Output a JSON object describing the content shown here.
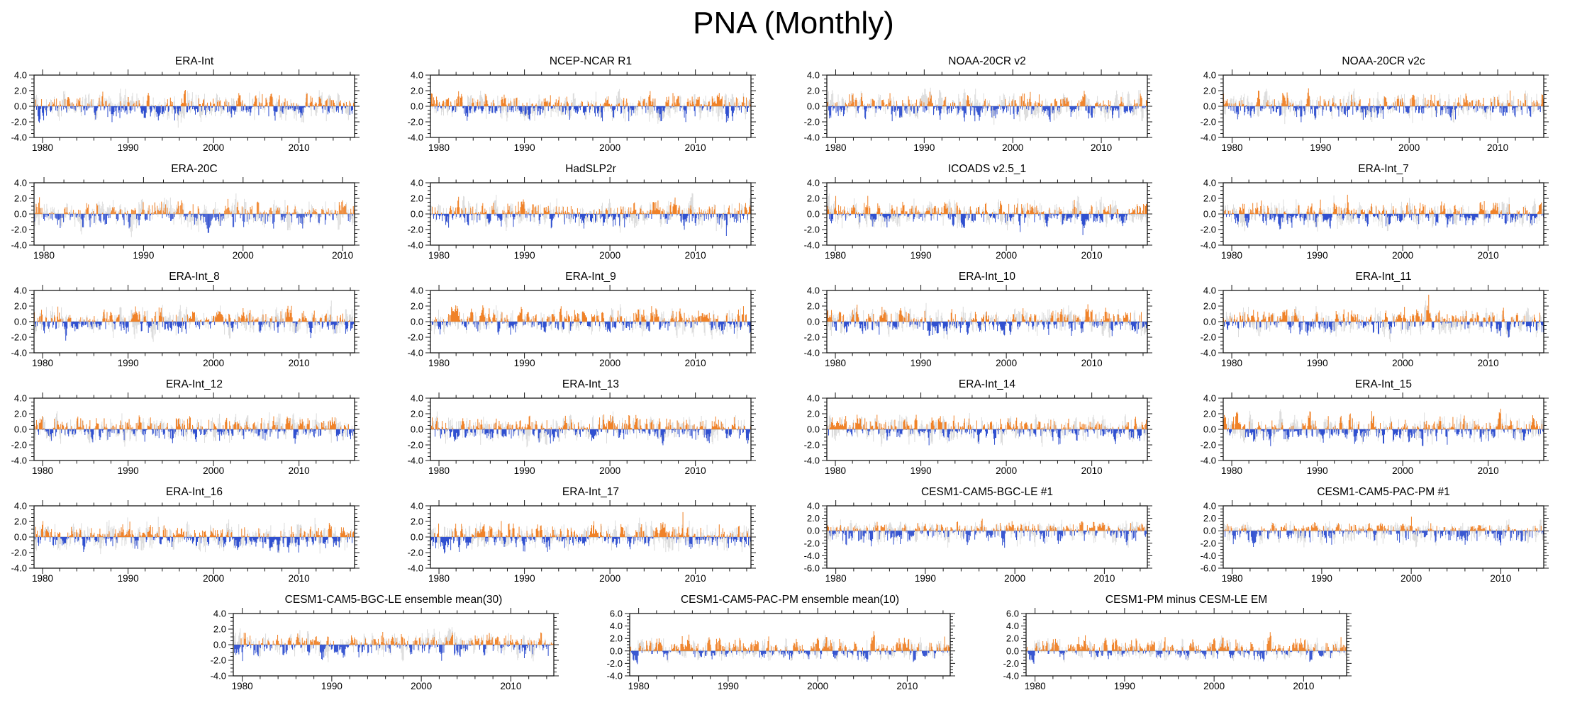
{
  "page_title": "PNA (Monthly)",
  "colors": {
    "positive_bar": "#F08228",
    "negative_bar": "#3050D0",
    "ghost_bar": "#DCDCDC",
    "axis": "#1a1a1a",
    "zero_line": "#9a9a9a",
    "background": "#ffffff"
  },
  "chart_data": {
    "type": "bar",
    "title": "PNA (Monthly)",
    "encoding": "Monthly PNA index anomalies: orange bars = positive values, blue bars = negative values, light-gray ghost bars = background reference series; x axis = years, y axis = index value",
    "x_axis_tick_years": [
      1980,
      1990,
      2000,
      2010
    ],
    "layout_rows": [
      [
        0,
        1,
        2,
        3
      ],
      [
        4,
        5,
        6,
        7
      ],
      [
        8,
        9,
        10,
        11
      ],
      [
        12,
        13,
        14,
        15
      ],
      [
        16,
        17,
        18,
        19
      ],
      [
        20,
        21,
        22
      ]
    ],
    "panels": [
      {
        "title": "ERA-Int",
        "ylim": [
          -4,
          4
        ],
        "ytick_step": 2,
        "ytick_labels": [
          "4.0",
          "2.0",
          "0.0",
          "-2.0",
          "-4.0"
        ],
        "xticks": [
          1980,
          1990,
          2000,
          2010
        ],
        "x_start": 1979,
        "x_end": 2016.5,
        "seed": 101,
        "synth": {
          "pos": 1.0,
          "neg": 1.05,
          "clip": [
            -3.9,
            3.9
          ]
        }
      },
      {
        "title": "NCEP-NCAR R1",
        "ylim": [
          -4,
          4
        ],
        "ytick_step": 2,
        "ytick_labels": [
          "4.0",
          "2.0",
          "0.0",
          "-2.0",
          "-4.0"
        ],
        "xticks": [
          1980,
          1990,
          2000,
          2010
        ],
        "x_start": 1979,
        "x_end": 2016.5,
        "seed": 102,
        "synth": {
          "pos": 1.0,
          "neg": 1.0,
          "clip": [
            -3.9,
            3.9
          ]
        }
      },
      {
        "title": "NOAA-20CR v2",
        "ylim": [
          -4,
          4
        ],
        "ytick_step": 2,
        "ytick_labels": [
          "4.0",
          "2.0",
          "0.0",
          "-2.0",
          "-4.0"
        ],
        "xticks": [
          1980,
          1990,
          2000,
          2010
        ],
        "x_start": 1979,
        "x_end": 2015.2,
        "seed": 103,
        "synth": {
          "pos": 1.05,
          "neg": 1.0,
          "clip": [
            -3.9,
            3.9
          ]
        }
      },
      {
        "title": "NOAA-20CR v2c",
        "ylim": [
          -4,
          4
        ],
        "ytick_step": 2,
        "ytick_labels": [
          "4.0",
          "2.0",
          "0.0",
          "-2.0",
          "-4.0"
        ],
        "xticks": [
          1980,
          1990,
          2000,
          2010
        ],
        "x_start": 1979,
        "x_end": 2015.2,
        "seed": 104,
        "synth": {
          "pos": 1.05,
          "neg": 1.0,
          "clip": [
            -3.9,
            3.9
          ]
        }
      },
      {
        "title": "ERA-20C",
        "ylim": [
          -4,
          4
        ],
        "ytick_step": 2,
        "ytick_labels": [
          "4.0",
          "2.0",
          "0.0",
          "-2.0",
          "-4.0"
        ],
        "xticks": [
          1980,
          1990,
          2000,
          2010
        ],
        "x_start": 1979,
        "x_end": 2011.2,
        "seed": 105,
        "synth": {
          "pos": 1.0,
          "neg": 1.1,
          "clip": [
            -3.9,
            3.9
          ]
        }
      },
      {
        "title": "HadSLP2r",
        "ylim": [
          -4,
          4
        ],
        "ytick_step": 2,
        "ytick_labels": [
          "4.0",
          "2.0",
          "0.0",
          "-2.0",
          "-4.0"
        ],
        "xticks": [
          1980,
          1990,
          2000,
          2010
        ],
        "x_start": 1979,
        "x_end": 2016.5,
        "seed": 106,
        "synth": {
          "pos": 1.0,
          "neg": 1.0,
          "clip": [
            -3.9,
            3.9
          ]
        }
      },
      {
        "title": "ICOADS v2.5_1",
        "ylim": [
          -4,
          4
        ],
        "ytick_step": 2,
        "ytick_labels": [
          "4.0",
          "2.0",
          "0.0",
          "-2.0",
          "-4.0"
        ],
        "xticks": [
          1980,
          1990,
          2000,
          2010
        ],
        "x_start": 1979,
        "x_end": 2016.5,
        "seed": 107,
        "synth": {
          "pos": 1.0,
          "neg": 0.95,
          "clip": [
            -3.9,
            3.9
          ]
        }
      },
      {
        "title": "ERA-Int_7",
        "ylim": [
          -4,
          4
        ],
        "ytick_step": 2,
        "ytick_labels": [
          "4.0",
          "2.0",
          "0.0",
          "-2.0",
          "-4.0"
        ],
        "xticks": [
          1980,
          1990,
          2000,
          2010
        ],
        "x_start": 1979,
        "x_end": 2016.5,
        "seed": 108,
        "synth": {
          "pos": 1.0,
          "neg": 1.0,
          "clip": [
            -3.9,
            3.9
          ]
        }
      },
      {
        "title": "ERA-Int_8",
        "ylim": [
          -4,
          4
        ],
        "ytick_step": 2,
        "ytick_labels": [
          "4.0",
          "2.0",
          "0.0",
          "-2.0",
          "-4.0"
        ],
        "xticks": [
          1980,
          1990,
          2000,
          2010
        ],
        "x_start": 1979,
        "x_end": 2016.5,
        "seed": 109,
        "synth": {
          "pos": 1.0,
          "neg": 1.0,
          "clip": [
            -3.9,
            3.9
          ]
        }
      },
      {
        "title": "ERA-Int_9",
        "ylim": [
          -4,
          4
        ],
        "ytick_step": 2,
        "ytick_labels": [
          "4.0",
          "2.0",
          "0.0",
          "-2.0",
          "-4.0"
        ],
        "xticks": [
          1980,
          1990,
          2000,
          2010
        ],
        "x_start": 1979,
        "x_end": 2016.5,
        "seed": 110,
        "synth": {
          "pos": 1.05,
          "neg": 1.0,
          "clip": [
            -3.9,
            3.9
          ]
        }
      },
      {
        "title": "ERA-Int_10",
        "ylim": [
          -4,
          4
        ],
        "ytick_step": 2,
        "ytick_labels": [
          "4.0",
          "2.0",
          "0.0",
          "-2.0",
          "-4.0"
        ],
        "xticks": [
          1980,
          1990,
          2000,
          2010
        ],
        "x_start": 1979,
        "x_end": 2016.5,
        "seed": 111,
        "synth": {
          "pos": 1.05,
          "neg": 1.0,
          "clip": [
            -3.9,
            3.9
          ]
        }
      },
      {
        "title": "ERA-Int_11",
        "ylim": [
          -4,
          4
        ],
        "ytick_step": 2,
        "ytick_labels": [
          "4.0",
          "2.0",
          "0.0",
          "-2.0",
          "-4.0"
        ],
        "xticks": [
          1980,
          1990,
          2000,
          2010
        ],
        "x_start": 1979,
        "x_end": 2016.5,
        "seed": 112,
        "synth": {
          "pos": 1.0,
          "neg": 1.0,
          "clip": [
            -3.9,
            3.9
          ]
        }
      },
      {
        "title": "ERA-Int_12",
        "ylim": [
          -4,
          4
        ],
        "ytick_step": 2,
        "ytick_labels": [
          "4.0",
          "2.0",
          "0.0",
          "-2.0",
          "-4.0"
        ],
        "xticks": [
          1980,
          1990,
          2000,
          2010
        ],
        "x_start": 1979,
        "x_end": 2016.5,
        "seed": 113,
        "synth": {
          "pos": 1.05,
          "neg": 1.0,
          "clip": [
            -3.9,
            3.9
          ]
        }
      },
      {
        "title": "ERA-Int_13",
        "ylim": [
          -4,
          4
        ],
        "ytick_step": 2,
        "ytick_labels": [
          "4.0",
          "2.0",
          "0.0",
          "-2.0",
          "-4.0"
        ],
        "xticks": [
          1980,
          1990,
          2000,
          2010
        ],
        "x_start": 1979,
        "x_end": 2016.5,
        "seed": 114,
        "synth": {
          "pos": 1.05,
          "neg": 1.0,
          "clip": [
            -3.9,
            3.9
          ]
        }
      },
      {
        "title": "ERA-Int_14",
        "ylim": [
          -4,
          4
        ],
        "ytick_step": 2,
        "ytick_labels": [
          "4.0",
          "2.0",
          "0.0",
          "-2.0",
          "-4.0"
        ],
        "xticks": [
          1980,
          1990,
          2000,
          2010
        ],
        "x_start": 1979,
        "x_end": 2016.5,
        "seed": 115,
        "synth": {
          "pos": 1.05,
          "neg": 1.0,
          "clip": [
            -3.9,
            3.9
          ]
        }
      },
      {
        "title": "ERA-Int_15",
        "ylim": [
          -4,
          4
        ],
        "ytick_step": 2,
        "ytick_labels": [
          "4.0",
          "2.0",
          "0.0",
          "-2.0",
          "-4.0"
        ],
        "xticks": [
          1980,
          1990,
          2000,
          2010
        ],
        "x_start": 1979,
        "x_end": 2016.5,
        "seed": 116,
        "synth": {
          "pos": 1.05,
          "neg": 1.0,
          "clip": [
            -3.9,
            3.9
          ]
        }
      },
      {
        "title": "ERA-Int_16",
        "ylim": [
          -4,
          4
        ],
        "ytick_step": 2,
        "ytick_labels": [
          "4.0",
          "2.0",
          "0.0",
          "-2.0",
          "-4.0"
        ],
        "xticks": [
          1980,
          1990,
          2000,
          2010
        ],
        "x_start": 1979,
        "x_end": 2016.5,
        "seed": 117,
        "synth": {
          "pos": 1.0,
          "neg": 1.0,
          "clip": [
            -3.9,
            3.9
          ]
        }
      },
      {
        "title": "ERA-Int_17",
        "ylim": [
          -4,
          4
        ],
        "ytick_step": 2,
        "ytick_labels": [
          "4.0",
          "2.0",
          "0.0",
          "-2.0",
          "-4.0"
        ],
        "xticks": [
          1980,
          1990,
          2000,
          2010
        ],
        "x_start": 1979,
        "x_end": 2016.5,
        "seed": 118,
        "synth": {
          "pos": 1.05,
          "neg": 1.0,
          "clip": [
            -3.9,
            3.9
          ]
        }
      },
      {
        "title": "CESM1-CAM5-BGC-LE #1",
        "ylim": [
          -6,
          4
        ],
        "ytick_step": 2,
        "ytick_labels": [
          "4.0",
          "2.0",
          "0.0",
          "-2.0",
          "-4.0",
          "-6.0"
        ],
        "xticks": [
          1980,
          1990,
          2000,
          2010
        ],
        "x_start": 1979,
        "x_end": 2014.8,
        "seed": 119,
        "synth": {
          "pos": 0.85,
          "neg": 1.35,
          "clip": [
            -5.5,
            3.9
          ]
        }
      },
      {
        "title": "CESM1-CAM5-PAC-PM #1",
        "ylim": [
          -6,
          4
        ],
        "ytick_step": 2,
        "ytick_labels": [
          "4.0",
          "2.0",
          "0.0",
          "-2.0",
          "-4.0",
          "-6.0"
        ],
        "xticks": [
          1980,
          1990,
          2000,
          2010
        ],
        "x_start": 1979,
        "x_end": 2014.8,
        "seed": 120,
        "synth": {
          "pos": 0.85,
          "neg": 1.3,
          "clip": [
            -5.5,
            3.9
          ]
        }
      },
      {
        "title": "CESM1-CAM5-BGC-LE ensemble mean(30)",
        "ylim": [
          -4,
          4
        ],
        "ytick_step": 2,
        "ytick_labels": [
          "4.0",
          "2.0",
          "0.0",
          "-2.0",
          "-4.0"
        ],
        "xticks": [
          1980,
          1990,
          2000,
          2010
        ],
        "x_start": 1979,
        "x_end": 2014.8,
        "seed": 121,
        "synth": {
          "pos": 0.95,
          "neg": 1.0,
          "clip": [
            -3.7,
            3.7
          ]
        }
      },
      {
        "title": "CESM1-CAM5-PAC-PM ensemble mean(10)",
        "ylim": [
          -4,
          6
        ],
        "ytick_step": 2,
        "ytick_labels": [
          "6.0",
          "4.0",
          "2.0",
          "0.0",
          "-2.0",
          "-4.0"
        ],
        "xticks": [
          1980,
          1990,
          2000,
          2010
        ],
        "x_start": 1979,
        "x_end": 2014.8,
        "seed": 122,
        "synth": {
          "pos": 1.3,
          "neg": 0.9,
          "clip": [
            -3.8,
            5.5
          ]
        }
      },
      {
        "title": "CESM1-PM minus CESM-LE EM",
        "ylim": [
          -4,
          6
        ],
        "ytick_step": 2,
        "ytick_labels": [
          "6.0",
          "4.0",
          "2.0",
          "0.0",
          "-2.0",
          "-4.0"
        ],
        "xticks": [
          1980,
          1990,
          2000,
          2010
        ],
        "x_start": 1979,
        "x_end": 2014.8,
        "seed": 122,
        "synth": {
          "pos": 1.25,
          "neg": 0.88,
          "clip": [
            -3.8,
            5.5
          ]
        }
      }
    ]
  }
}
